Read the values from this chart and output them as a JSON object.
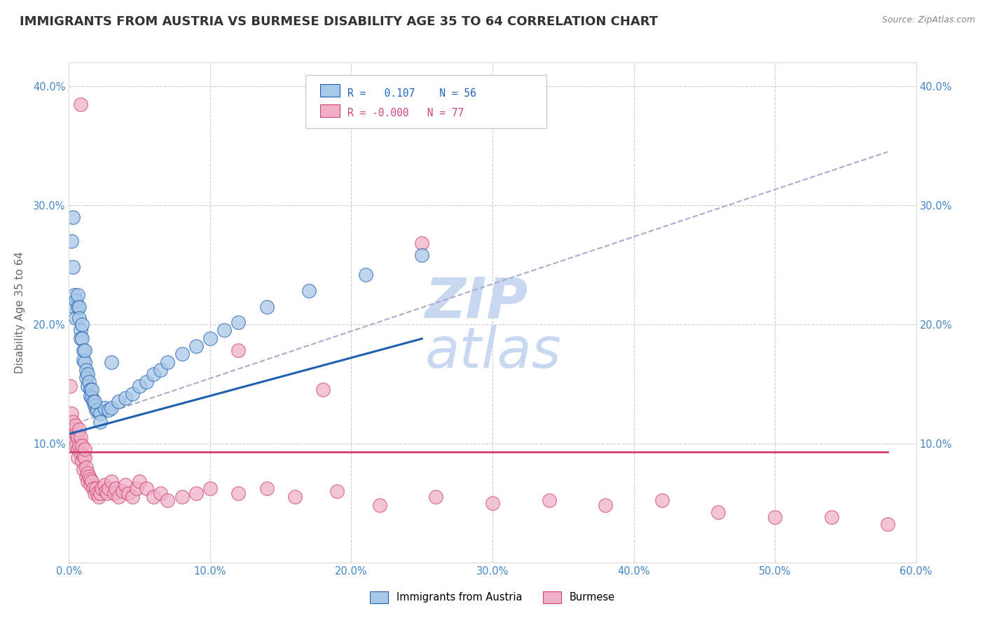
{
  "title": "IMMIGRANTS FROM AUSTRIA VS BURMESE DISABILITY AGE 35 TO 64 CORRELATION CHART",
  "source": "Source: ZipAtlas.com",
  "ylabel": "Disability Age 35 to 64",
  "xticklabels": [
    "0.0%",
    "10.0%",
    "20.0%",
    "30.0%",
    "40.0%",
    "50.0%",
    "60.0%"
  ],
  "yticklabels_left": [
    "",
    "10.0%",
    "20.0%",
    "30.0%",
    "40.0%"
  ],
  "yticklabels_right": [
    "",
    "10.0%",
    "20.0%",
    "30.0%",
    "40.0%"
  ],
  "xlim": [
    0.0,
    0.6
  ],
  "ylim": [
    0.0,
    0.42
  ],
  "legend_label1": "Immigrants from Austria",
  "legend_label2": "Burmese",
  "color_blue": "#a8c8e8",
  "color_pink": "#f0b0c8",
  "line_blue": "#2060b0",
  "line_pink": "#d04070",
  "watermark_color": "#c8d8f0",
  "blue_scatter_x": [
    0.002,
    0.003,
    0.003,
    0.004,
    0.004,
    0.005,
    0.005,
    0.006,
    0.006,
    0.007,
    0.007,
    0.008,
    0.008,
    0.009,
    0.009,
    0.01,
    0.01,
    0.011,
    0.011,
    0.012,
    0.012,
    0.013,
    0.013,
    0.014,
    0.015,
    0.015,
    0.016,
    0.016,
    0.017,
    0.018,
    0.019,
    0.02,
    0.022,
    0.025,
    0.028,
    0.03,
    0.035,
    0.04,
    0.045,
    0.05,
    0.055,
    0.06,
    0.065,
    0.07,
    0.08,
    0.09,
    0.1,
    0.11,
    0.12,
    0.14,
    0.17,
    0.21,
    0.25,
    0.03,
    0.022,
    0.018
  ],
  "blue_scatter_y": [
    0.27,
    0.29,
    0.248,
    0.225,
    0.215,
    0.22,
    0.205,
    0.215,
    0.225,
    0.215,
    0.205,
    0.195,
    0.188,
    0.2,
    0.188,
    0.178,
    0.17,
    0.168,
    0.178,
    0.162,
    0.155,
    0.158,
    0.148,
    0.152,
    0.145,
    0.14,
    0.138,
    0.145,
    0.135,
    0.132,
    0.128,
    0.128,
    0.125,
    0.13,
    0.128,
    0.13,
    0.135,
    0.138,
    0.142,
    0.148,
    0.152,
    0.158,
    0.162,
    0.168,
    0.175,
    0.182,
    0.188,
    0.195,
    0.202,
    0.215,
    0.228,
    0.242,
    0.258,
    0.168,
    0.118,
    0.135
  ],
  "pink_scatter_x": [
    0.001,
    0.002,
    0.002,
    0.003,
    0.003,
    0.004,
    0.004,
    0.005,
    0.005,
    0.005,
    0.006,
    0.006,
    0.006,
    0.007,
    0.007,
    0.008,
    0.008,
    0.009,
    0.009,
    0.01,
    0.01,
    0.011,
    0.011,
    0.012,
    0.012,
    0.013,
    0.013,
    0.014,
    0.015,
    0.015,
    0.016,
    0.017,
    0.018,
    0.019,
    0.02,
    0.021,
    0.022,
    0.023,
    0.025,
    0.026,
    0.027,
    0.028,
    0.03,
    0.032,
    0.033,
    0.035,
    0.038,
    0.04,
    0.042,
    0.045,
    0.048,
    0.05,
    0.055,
    0.06,
    0.065,
    0.07,
    0.08,
    0.09,
    0.1,
    0.12,
    0.14,
    0.16,
    0.19,
    0.22,
    0.26,
    0.3,
    0.34,
    0.38,
    0.42,
    0.46,
    0.5,
    0.54,
    0.58,
    0.12,
    0.18,
    0.25,
    0.008
  ],
  "pink_scatter_y": [
    0.148,
    0.115,
    0.125,
    0.108,
    0.118,
    0.112,
    0.102,
    0.108,
    0.098,
    0.115,
    0.105,
    0.095,
    0.088,
    0.112,
    0.098,
    0.092,
    0.105,
    0.085,
    0.098,
    0.09,
    0.078,
    0.088,
    0.095,
    0.08,
    0.072,
    0.075,
    0.068,
    0.072,
    0.065,
    0.07,
    0.068,
    0.062,
    0.058,
    0.062,
    0.058,
    0.055,
    0.058,
    0.062,
    0.065,
    0.06,
    0.058,
    0.062,
    0.068,
    0.058,
    0.062,
    0.055,
    0.06,
    0.065,
    0.058,
    0.055,
    0.062,
    0.068,
    0.062,
    0.055,
    0.058,
    0.052,
    0.055,
    0.058,
    0.062,
    0.058,
    0.062,
    0.055,
    0.06,
    0.048,
    0.055,
    0.05,
    0.052,
    0.048,
    0.052,
    0.042,
    0.038,
    0.038,
    0.032,
    0.178,
    0.145,
    0.268,
    0.385
  ],
  "blue_line_x": [
    0.0,
    0.25
  ],
  "blue_line_y": [
    0.108,
    0.188
  ],
  "pink_line_x": [
    0.0,
    0.58
  ],
  "pink_line_y": [
    0.093,
    0.093
  ],
  "dash_line_x": [
    0.0,
    0.58
  ],
  "dash_line_y": [
    0.115,
    0.345
  ],
  "grid_color": "#cccccc",
  "background_color": "#ffffff",
  "title_fontsize": 13,
  "axis_fontsize": 11,
  "tick_fontsize": 10.5,
  "watermark_fontsize": 58
}
